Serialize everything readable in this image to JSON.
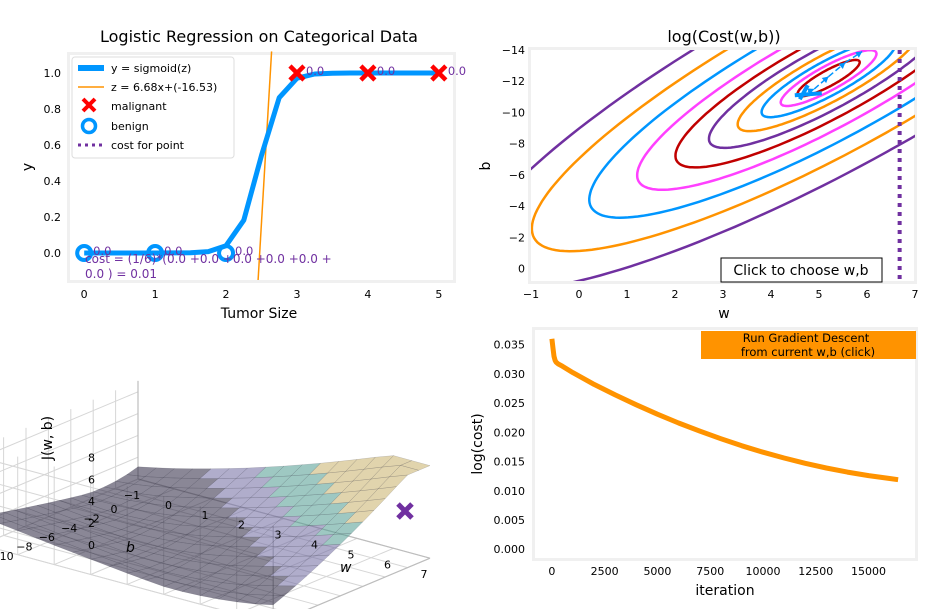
{
  "colors": {
    "blue": "#0096FF",
    "orange": "#FF9300",
    "red": "#FF0000",
    "purple": "#7030A0",
    "magenta": "#FF40FF",
    "darkred": "#C00000",
    "frame": "#F0F0F0",
    "surface": [
      "#6f6aa0",
      "#4e9a8f",
      "#c8b06a",
      "#2a2540"
    ]
  },
  "chart_data": [
    {
      "type": "scatter",
      "title": "Logistic Regression on Categorical Data",
      "xlabel": "Tumor Size",
      "ylabel": "y",
      "xlim": [
        -0.2,
        5.2
      ],
      "ylim": [
        -0.15,
        1.1
      ],
      "xticks": [
        0,
        1,
        2,
        3,
        4,
        5
      ],
      "yticks": [
        0.0,
        0.2,
        0.4,
        0.6,
        0.8,
        1.0
      ],
      "x_tick_labels": [
        "0",
        "1",
        "2",
        "3",
        "4",
        "5"
      ],
      "y_tick_labels": [
        "0.0",
        "0.2",
        "0.4",
        "0.6",
        "0.8",
        "1.0"
      ],
      "model": {
        "w": 6.68,
        "b": -16.53
      },
      "points": [
        {
          "x": 0,
          "y": 0,
          "label": "benign",
          "cost_label": "0.0"
        },
        {
          "x": 1,
          "y": 0,
          "label": "benign",
          "cost_label": "0.0"
        },
        {
          "x": 2,
          "y": 0,
          "label": "benign",
          "cost_label": "0.0"
        },
        {
          "x": 3,
          "y": 1,
          "label": "malignant",
          "cost_label": "0.0"
        },
        {
          "x": 4,
          "y": 1,
          "label": "malignant",
          "cost_label": "0.0"
        },
        {
          "x": 5,
          "y": 1,
          "label": "malignant",
          "cost_label": "0.0"
        }
      ],
      "legend": [
        {
          "name": "y = sigmoid(z)"
        },
        {
          "name": "z = 6.68x+(-16.53)"
        },
        {
          "name": "malignant"
        },
        {
          "name": "benign"
        },
        {
          "name": "cost for point"
        }
      ],
      "legend_position": "upper-left",
      "cost_text_line1": "cost = (1/6)*(0.0 +0.0 +0.0 +0.0 +0.0 +",
      "cost_text_line2": "0.0 ) = 0.01",
      "grid": false
    },
    {
      "type": "contour",
      "title": "log(Cost(w,b))",
      "xlabel": "w",
      "ylabel": "b",
      "xlim": [
        -1,
        7
      ],
      "ylim": [
        0.8,
        -14
      ],
      "xticks": [
        -1,
        0,
        1,
        2,
        3,
        4,
        5,
        6,
        7
      ],
      "yticks": [
        0,
        -2,
        -4,
        -6,
        -8,
        -10,
        -12,
        -14
      ],
      "x_tick_labels": [
        "−1",
        "0",
        "1",
        "2",
        "3",
        "4",
        "5",
        "6",
        "7"
      ],
      "y_tick_labels": [
        "0",
        "−2",
        "−4",
        "−6",
        "−8",
        "−10",
        "−12",
        "−14"
      ],
      "current_point": {
        "w": 6.68,
        "b": -16.53
      },
      "contour_levels": [
        {
          "k": 1.3,
          "color": "#C00000"
        },
        {
          "k": 2.0,
          "color": "#FF40FF"
        },
        {
          "k": 2.8,
          "color": "#0096FF"
        },
        {
          "k": 3.8,
          "color": "#FF9300"
        },
        {
          "k": 5.0,
          "color": "#7030A0"
        },
        {
          "k": 6.4,
          "color": "#C00000"
        },
        {
          "k": 8.0,
          "color": "#FF40FF"
        },
        {
          "k": 10.0,
          "color": "#0096FF"
        },
        {
          "k": 12.4,
          "color": "#FF9300"
        },
        {
          "k": 15.2,
          "color": "#7030A0"
        }
      ],
      "gd_path": [
        {
          "w": 4.6,
          "b": -11.1
        },
        {
          "w": 4.9,
          "b": -11.5
        },
        {
          "w": 5.2,
          "b": -12.3
        },
        {
          "w": 5.55,
          "b": -13.2
        },
        {
          "w": 5.9,
          "b": -13.9
        }
      ],
      "grid": false
    },
    {
      "type": "surface",
      "xlabel": "w",
      "ylabel": "b",
      "zlabel": "J(w, b)",
      "w_ticks": [
        -1,
        0,
        1,
        2,
        3,
        4,
        5,
        6,
        7
      ],
      "w_tick_labels": [
        "−1",
        "0",
        "1",
        "2",
        "3",
        "4",
        "5",
        "6",
        "7"
      ],
      "b_ticks": [
        0,
        -2,
        -4,
        -6,
        -8,
        -10,
        -12,
        -14
      ],
      "b_tick_labels": [
        "0",
        "−2",
        "−4",
        "−6",
        "−8",
        "−10",
        "−12",
        "−14"
      ],
      "z_ticks": [
        0,
        2,
        4,
        6,
        8
      ],
      "z_tick_labels": [
        "0",
        "2",
        "4",
        "6",
        "8"
      ],
      "current_point": {
        "w": 6.68,
        "b": -16.53
      },
      "grid": true
    },
    {
      "type": "line",
      "xlabel": "iteration",
      "ylabel": "log(cost)",
      "xlim": [
        -800,
        17200
      ],
      "ylim": [
        -0.0015,
        0.0375
      ],
      "xticks": [
        0,
        2500,
        5000,
        7500,
        10000,
        12500,
        15000
      ],
      "yticks": [
        0.0,
        0.005,
        0.01,
        0.015,
        0.02,
        0.025,
        0.03,
        0.035
      ],
      "x_tick_labels": [
        "0",
        "2500",
        "5000",
        "7500",
        "10000",
        "12500",
        "15000"
      ],
      "y_tick_labels": [
        "0.000",
        "0.005",
        "0.010",
        "0.015",
        "0.020",
        "0.025",
        "0.030",
        "0.035"
      ],
      "series": [
        {
          "x": [
            0,
            50,
            100,
            150,
            200,
            300,
            500,
            1000,
            2000,
            3000,
            4000,
            5000,
            6000,
            7000,
            8000,
            9000,
            10000,
            11000,
            12000,
            13000,
            14000,
            15000,
            16000,
            16400
          ],
          "y": [
            0.036,
            0.0345,
            0.033,
            0.0323,
            0.032,
            0.0317,
            0.0313,
            0.0302,
            0.0282,
            0.0264,
            0.0247,
            0.0231,
            0.0216,
            0.0202,
            0.0189,
            0.0177,
            0.0166,
            0.0156,
            0.0147,
            0.0139,
            0.0132,
            0.0126,
            0.0121,
            0.0119
          ]
        }
      ],
      "grid": false
    }
  ],
  "buttons": {
    "choose_wb": "Click to choose w,b",
    "run_gd_line1": "Run Gradient Descent",
    "run_gd_line2": "from current w,b (click)"
  }
}
